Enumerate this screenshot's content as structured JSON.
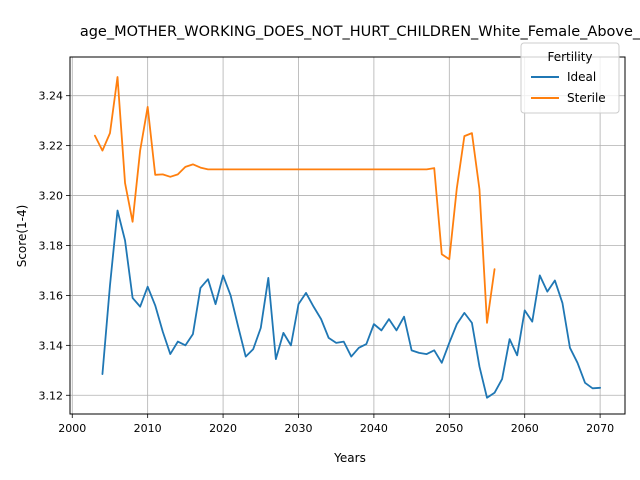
{
  "chart_data": {
    "type": "line",
    "title": "age_MOTHER_WORKING_DOES_NOT_HURT_CHILDREN_White_Female_Above_",
    "xlabel": "Years",
    "ylabel": "Score(1-4)",
    "xlim": [
      1999.7,
      2073.3
    ],
    "ylim": [
      3.1125,
      3.2555
    ],
    "x_ticks": [
      2000,
      2010,
      2020,
      2030,
      2040,
      2050,
      2060,
      2070
    ],
    "y_ticks": [
      3.12,
      3.14,
      3.16,
      3.18,
      3.2,
      3.22,
      3.24
    ],
    "x_tick_labels": [
      "2000",
      "2010",
      "2020",
      "2030",
      "2040",
      "2050",
      "2060",
      "2070"
    ],
    "y_tick_labels": [
      "3.12",
      "3.14",
      "3.16",
      "3.18",
      "3.20",
      "3.22",
      "3.24"
    ],
    "grid": true,
    "legend": {
      "title": "Fertility",
      "placement": "top-right"
    },
    "series": [
      {
        "name": "Ideal",
        "color": "#1f77b4",
        "x": [
          2004,
          2005,
          2006,
          2007,
          2008,
          2009,
          2010,
          2011,
          2012,
          2013,
          2014,
          2015,
          2016,
          2017,
          2018,
          2019,
          2020,
          2021,
          2022,
          2023,
          2024,
          2025,
          2026,
          2027,
          2028,
          2029,
          2030,
          2031,
          2032,
          2033,
          2034,
          2035,
          2036,
          2037,
          2038,
          2039,
          2040,
          2041,
          2042,
          2043,
          2044,
          2045,
          2046,
          2047,
          2048,
          2049,
          2050,
          2051,
          2052,
          2053,
          2054,
          2055,
          2056,
          2057,
          2058,
          2059,
          2060,
          2061,
          2062,
          2063,
          2064,
          2065,
          2066,
          2067,
          2068,
          2069,
          2070
        ],
        "y": [
          3.1285,
          3.164,
          3.194,
          3.182,
          3.159,
          3.1555,
          3.1635,
          3.156,
          3.1455,
          3.1365,
          3.1415,
          3.14,
          3.1445,
          3.163,
          3.1665,
          3.1565,
          3.168,
          3.16,
          3.1475,
          3.1355,
          3.1385,
          3.147,
          3.167,
          3.1345,
          3.145,
          3.14,
          3.1565,
          3.161,
          3.1555,
          3.1505,
          3.143,
          3.141,
          3.1415,
          3.1355,
          3.139,
          3.1405,
          3.1485,
          3.146,
          3.1505,
          3.146,
          3.1515,
          3.138,
          3.137,
          3.1365,
          3.138,
          3.133,
          3.141,
          3.1485,
          3.153,
          3.149,
          3.1315,
          3.119,
          3.121,
          3.1265,
          3.1425,
          3.136,
          3.154,
          3.1495,
          3.168,
          3.1615,
          3.166,
          3.157,
          3.139,
          3.133,
          3.125,
          3.1228,
          3.123
        ]
      },
      {
        "name": "Sterile",
        "color": "#ff7f0e",
        "x": [
          2003,
          2004,
          2005,
          2006,
          2007,
          2008,
          2009,
          2010,
          2011,
          2012,
          2013,
          2014,
          2015,
          2016,
          2017,
          2018,
          2019,
          2020,
          2021,
          2022,
          2023,
          2024,
          2025,
          2026,
          2027,
          2028,
          2029,
          2030,
          2031,
          2032,
          2033,
          2034,
          2035,
          2036,
          2037,
          2038,
          2039,
          2040,
          2041,
          2042,
          2043,
          2044,
          2045,
          2046,
          2047,
          2048,
          2049,
          2050,
          2051,
          2052,
          2053,
          2054,
          2055,
          2056
        ],
        "y": [
          3.224,
          3.218,
          3.225,
          3.2475,
          3.205,
          3.1895,
          3.218,
          3.2355,
          3.2083,
          3.2085,
          3.2075,
          3.2085,
          3.2115,
          3.2125,
          3.2112,
          3.2105,
          3.2105,
          3.2105,
          3.2105,
          3.2105,
          3.2105,
          3.2105,
          3.2105,
          3.2105,
          3.2105,
          3.2105,
          3.2105,
          3.2105,
          3.2105,
          3.2105,
          3.2105,
          3.2105,
          3.2105,
          3.2105,
          3.2105,
          3.2105,
          3.2105,
          3.2105,
          3.2105,
          3.2105,
          3.2105,
          3.2105,
          3.2105,
          3.2105,
          3.2105,
          3.211,
          3.1765,
          3.1745,
          3.203,
          3.2238,
          3.225,
          3.2025,
          3.149,
          3.1705
        ]
      }
    ]
  }
}
